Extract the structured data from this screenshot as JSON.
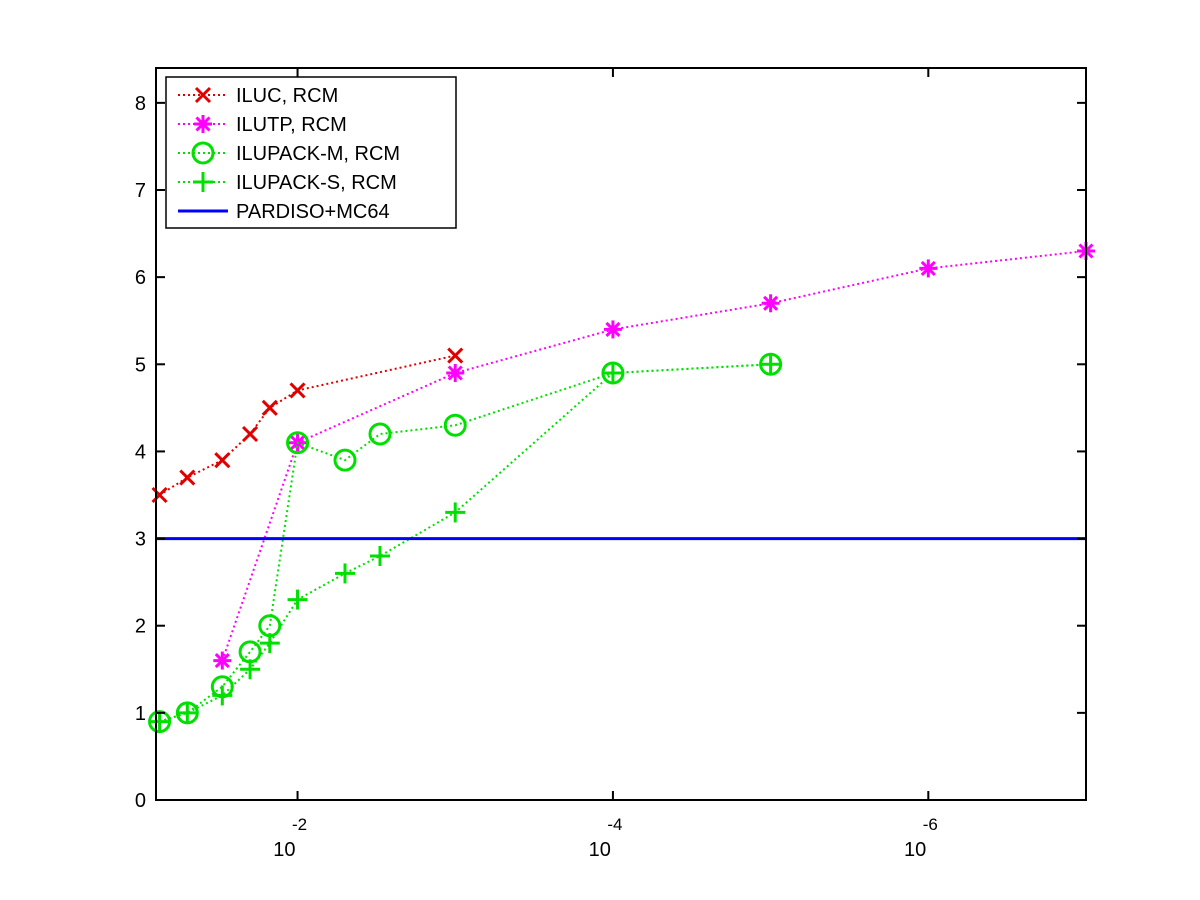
{
  "chart_data": {
    "type": "line",
    "title": "",
    "xlabel": "",
    "ylabel": "",
    "x_scale": "log-reversed",
    "xlim": [
      0.079,
      1e-07
    ],
    "ylim": [
      0,
      8.4
    ],
    "grid": false,
    "legend_position": "top-left",
    "x_ticks": [
      {
        "base": "10",
        "exp": "-2",
        "value": 0.01
      },
      {
        "base": "10",
        "exp": "-4",
        "value": 0.0001
      },
      {
        "base": "10",
        "exp": "-6",
        "value": 1e-06
      }
    ],
    "y_ticks": [
      "0",
      "1",
      "2",
      "3",
      "4",
      "5",
      "6",
      "7",
      "8"
    ],
    "series": [
      {
        "name": "ILUC, RCM",
        "color": "#e00000",
        "marker": "x",
        "line": "dotted",
        "x": [
          0.075,
          0.05,
          0.03,
          0.02,
          0.015,
          0.01,
          0.001
        ],
        "y": [
          3.5,
          3.7,
          3.9,
          4.2,
          4.5,
          4.7,
          5.1
        ]
      },
      {
        "name": "ILUTP, RCM",
        "color": "#ff00ff",
        "marker": "asterisk",
        "line": "dotted",
        "x": [
          0.03,
          0.01,
          0.001,
          0.0001,
          1e-05,
          1e-06,
          1e-07
        ],
        "y": [
          1.6,
          4.1,
          4.9,
          5.4,
          5.7,
          6.1,
          6.3
        ]
      },
      {
        "name": "ILUPACK-M, RCM",
        "color": "#00e000",
        "marker": "circle",
        "line": "dotted",
        "x": [
          0.075,
          0.05,
          0.03,
          0.02,
          0.015,
          0.01,
          0.005,
          0.003,
          0.001,
          0.0001,
          1e-05
        ],
        "y": [
          0.9,
          1.0,
          1.3,
          1.7,
          2.0,
          4.1,
          3.9,
          4.2,
          4.3,
          4.9,
          5.0
        ]
      },
      {
        "name": "ILUPACK-S, RCM",
        "color": "#00e000",
        "marker": "plus",
        "line": "dotted",
        "x": [
          0.075,
          0.05,
          0.03,
          0.02,
          0.015,
          0.01,
          0.005,
          0.003,
          0.001,
          0.0001,
          1e-05
        ],
        "y": [
          0.9,
          1.0,
          1.2,
          1.5,
          1.8,
          2.3,
          2.6,
          2.8,
          3.3,
          4.9,
          5.0
        ]
      },
      {
        "name": "PARDISO+MC64",
        "color": "#0000ff",
        "marker": "none",
        "line": "solid",
        "x": [
          0.079,
          1e-07
        ],
        "y": [
          3.0,
          3.0
        ]
      }
    ]
  }
}
